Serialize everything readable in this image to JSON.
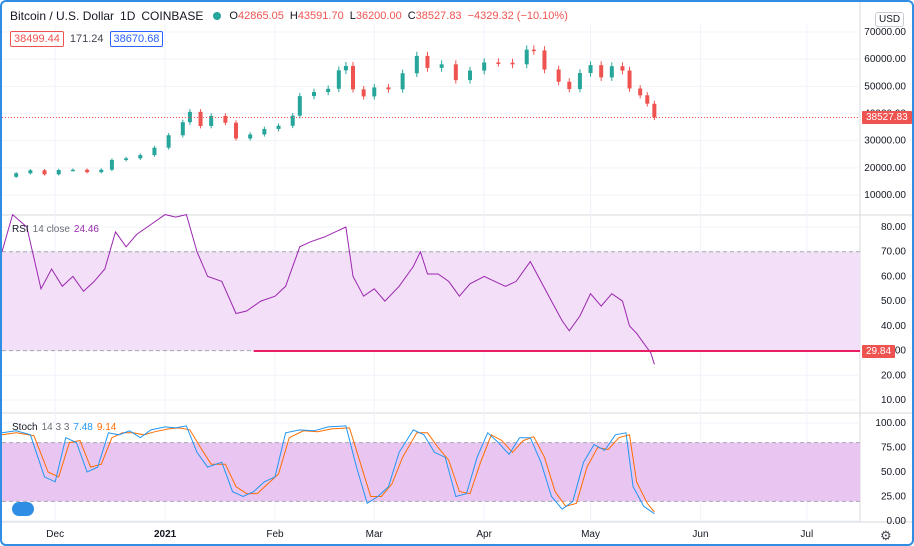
{
  "header": {
    "symbol": "Bitcoin / U.S. Dollar",
    "interval": "1D",
    "exchange": "COINBASE",
    "open_label": "O",
    "open": "42865.05",
    "high_label": "H",
    "high": "43591.70",
    "low_label": "L",
    "low": "36200.00",
    "close_label": "C",
    "close": "38527.83",
    "change": "−4329.32 (−10.10%)"
  },
  "quote": {
    "bid": "38499.44",
    "spread": "171.24",
    "ask": "38670.68"
  },
  "currency": "USD",
  "colors": {
    "up": "#26a69a",
    "down": "#ef5350",
    "rsi": "#9c27b0",
    "rsi_band": "#f3dff8",
    "stoch_band": "#e9c6f2",
    "k": "#2196f3",
    "d": "#ff6d00",
    "border": "#2f8de4"
  },
  "rsi_legend": {
    "name": "RSI",
    "params": "14 close",
    "value": "24.46"
  },
  "stoch_legend": {
    "name": "Stoch",
    "params": "14 3 3",
    "k_value": "7.48",
    "d_value": "9.14"
  },
  "price_tag": "38527.83",
  "rsi_tag": "29.84",
  "icons": {
    "settings": "gear-icon",
    "logo": "cloud-logo-icon"
  },
  "chart_data": [
    {
      "type": "candlestick",
      "title": "Bitcoin / U.S. Dollar 1D COINBASE",
      "ylim": [
        0,
        70000
      ],
      "yticks": [
        "70000.00",
        "60000.00",
        "50000.00",
        "40000.00",
        "30000.00",
        "20000.00",
        "10000.00"
      ],
      "ytick_values": [
        70000,
        60000,
        50000,
        40000,
        30000,
        20000,
        10000
      ],
      "xticks": [
        "Dec",
        "2021",
        "Feb",
        "Mar",
        "Apr",
        "May",
        "Jun",
        "Jul"
      ],
      "xtick_dates": [
        "2020-12-01",
        "2021-01-01",
        "2021-02-01",
        "2021-03-01",
        "2021-04-01",
        "2021-05-01",
        "2021-06-01",
        "2021-07-01"
      ],
      "x_range": [
        "2020-11-16",
        "2021-07-16"
      ],
      "last_price": 38527.83,
      "series_close": [
        [
          "2020-11-16",
          16700
        ],
        [
          "2020-11-20",
          18000
        ],
        [
          "2020-11-24",
          19100
        ],
        [
          "2020-11-28",
          17600
        ],
        [
          "2020-12-02",
          19200
        ],
        [
          "2020-12-06",
          19300
        ],
        [
          "2020-12-10",
          18400
        ],
        [
          "2020-12-14",
          19300
        ],
        [
          "2020-12-17",
          22900
        ],
        [
          "2020-12-21",
          23500
        ],
        [
          "2020-12-25",
          24700
        ],
        [
          "2020-12-29",
          27400
        ],
        [
          "2021-01-02",
          32000
        ],
        [
          "2021-01-06",
          36800
        ],
        [
          "2021-01-08",
          40600
        ],
        [
          "2021-01-11",
          35400
        ],
        [
          "2021-01-14",
          39100
        ],
        [
          "2021-01-18",
          36600
        ],
        [
          "2021-01-21",
          30800
        ],
        [
          "2021-01-25",
          32300
        ],
        [
          "2021-01-29",
          34300
        ],
        [
          "2021-02-02",
          35500
        ],
        [
          "2021-02-06",
          39200
        ],
        [
          "2021-02-08",
          46400
        ],
        [
          "2021-02-12",
          47900
        ],
        [
          "2021-02-16",
          49100
        ],
        [
          "2021-02-19",
          55900
        ],
        [
          "2021-02-21",
          57500
        ],
        [
          "2021-02-23",
          48900
        ],
        [
          "2021-02-26",
          46300
        ],
        [
          "2021-03-01",
          49600
        ],
        [
          "2021-03-05",
          48900
        ],
        [
          "2021-03-09",
          54800
        ],
        [
          "2021-03-13",
          61200
        ],
        [
          "2021-03-16",
          56800
        ],
        [
          "2021-03-20",
          58100
        ],
        [
          "2021-03-24",
          52300
        ],
        [
          "2021-03-28",
          55800
        ],
        [
          "2021-04-01",
          58800
        ],
        [
          "2021-04-05",
          58700
        ],
        [
          "2021-04-09",
          58100
        ],
        [
          "2021-04-13",
          63500
        ],
        [
          "2021-04-15",
          63200
        ],
        [
          "2021-04-18",
          56200
        ],
        [
          "2021-04-22",
          51700
        ],
        [
          "2021-04-25",
          49000
        ],
        [
          "2021-04-28",
          54900
        ],
        [
          "2021-05-01",
          57800
        ],
        [
          "2021-05-04",
          53300
        ],
        [
          "2021-05-07",
          57400
        ],
        [
          "2021-05-10",
          55800
        ],
        [
          "2021-05-12",
          49200
        ],
        [
          "2021-05-15",
          46700
        ],
        [
          "2021-05-17",
          43600
        ],
        [
          "2021-05-19",
          38528
        ]
      ]
    },
    {
      "type": "line",
      "title": "RSI 14 close",
      "ylim": [
        0,
        85
      ],
      "yticks": [
        "80.00",
        "70.00",
        "60.00",
        "50.00",
        "40.00",
        "30.00",
        "20.00",
        "10.00"
      ],
      "ytick_values": [
        80,
        70,
        60,
        50,
        40,
        30,
        20,
        10
      ],
      "band": [
        30,
        70
      ],
      "threshold_line": 29.84,
      "threshold_start": "2021-01-26",
      "last_value": 24.46,
      "series": [
        {
          "values": [
            [
              "2020-11-16",
              70
            ],
            [
              "2020-11-19",
              85
            ],
            [
              "2020-11-23",
              80
            ],
            [
              "2020-11-27",
              55
            ],
            [
              "2020-11-30",
              63
            ],
            [
              "2020-12-03",
              56
            ],
            [
              "2020-12-06",
              60
            ],
            [
              "2020-12-09",
              54
            ],
            [
              "2020-12-12",
              58
            ],
            [
              "2020-12-15",
              63
            ],
            [
              "2020-12-18",
              78
            ],
            [
              "2020-12-21",
              72
            ],
            [
              "2020-12-24",
              77
            ],
            [
              "2020-12-28",
              81
            ],
            [
              "2021-01-01",
              85
            ],
            [
              "2021-01-04",
              84
            ],
            [
              "2021-01-07",
              85
            ],
            [
              "2021-01-10",
              70
            ],
            [
              "2021-01-13",
              60
            ],
            [
              "2021-01-17",
              58
            ],
            [
              "2021-01-21",
              45
            ],
            [
              "2021-01-24",
              46
            ],
            [
              "2021-01-28",
              50
            ],
            [
              "2021-02-01",
              52
            ],
            [
              "2021-02-04",
              56
            ],
            [
              "2021-02-08",
              72
            ],
            [
              "2021-02-11",
              74
            ],
            [
              "2021-02-15",
              76
            ],
            [
              "2021-02-18",
              78
            ],
            [
              "2021-02-21",
              80
            ],
            [
              "2021-02-23",
              60
            ],
            [
              "2021-02-26",
              52
            ],
            [
              "2021-03-01",
              55
            ],
            [
              "2021-03-04",
              50
            ],
            [
              "2021-03-08",
              56
            ],
            [
              "2021-03-12",
              64
            ],
            [
              "2021-03-14",
              70
            ],
            [
              "2021-03-16",
              61
            ],
            [
              "2021-03-19",
              61
            ],
            [
              "2021-03-22",
              58
            ],
            [
              "2021-03-25",
              52
            ],
            [
              "2021-03-28",
              57
            ],
            [
              "2021-04-01",
              60
            ],
            [
              "2021-04-04",
              58
            ],
            [
              "2021-04-07",
              56
            ],
            [
              "2021-04-10",
              58
            ],
            [
              "2021-04-14",
              66
            ],
            [
              "2021-04-17",
              58
            ],
            [
              "2021-04-20",
              50
            ],
            [
              "2021-04-23",
              42
            ],
            [
              "2021-04-25",
              38
            ],
            [
              "2021-04-28",
              44
            ],
            [
              "2021-05-01",
              53
            ],
            [
              "2021-05-04",
              48
            ],
            [
              "2021-05-07",
              53
            ],
            [
              "2021-05-10",
              50
            ],
            [
              "2021-05-12",
              40
            ],
            [
              "2021-05-14",
              37
            ],
            [
              "2021-05-16",
              33
            ],
            [
              "2021-05-18",
              29
            ],
            [
              "2021-05-19",
              24.46
            ]
          ]
        }
      ]
    },
    {
      "type": "line",
      "title": "Stoch 14 3 3",
      "ylim": [
        0,
        100
      ],
      "yticks": [
        "100.00",
        "75.00",
        "50.00",
        "25.00",
        "0.00"
      ],
      "ytick_values": [
        100,
        75,
        50,
        25,
        0
      ],
      "band": [
        20,
        80
      ],
      "series": [
        {
          "name": "K",
          "values": [
            [
              "2020-11-16",
              90
            ],
            [
              "2020-11-20",
              92
            ],
            [
              "2020-11-24",
              88
            ],
            [
              "2020-11-28",
              45
            ],
            [
              "2020-12-01",
              40
            ],
            [
              "2020-12-04",
              85
            ],
            [
              "2020-12-07",
              80
            ],
            [
              "2020-12-10",
              50
            ],
            [
              "2020-12-13",
              55
            ],
            [
              "2020-12-16",
              90
            ],
            [
              "2020-12-19",
              88
            ],
            [
              "2020-12-22",
              92
            ],
            [
              "2020-12-25",
              85
            ],
            [
              "2020-12-28",
              93
            ],
            [
              "2021-01-01",
              96
            ],
            [
              "2021-01-04",
              95
            ],
            [
              "2021-01-07",
              97
            ],
            [
              "2021-01-10",
              70
            ],
            [
              "2021-01-13",
              55
            ],
            [
              "2021-01-17",
              60
            ],
            [
              "2021-01-20",
              30
            ],
            [
              "2021-01-23",
              25
            ],
            [
              "2021-01-26",
              30
            ],
            [
              "2021-01-29",
              40
            ],
            [
              "2021-02-01",
              45
            ],
            [
              "2021-02-04",
              90
            ],
            [
              "2021-02-08",
              93
            ],
            [
              "2021-02-12",
              92
            ],
            [
              "2021-02-16",
              96
            ],
            [
              "2021-02-21",
              97
            ],
            [
              "2021-02-24",
              55
            ],
            [
              "2021-02-27",
              18
            ],
            [
              "2021-03-02",
              25
            ],
            [
              "2021-03-05",
              35
            ],
            [
              "2021-03-08",
              70
            ],
            [
              "2021-03-12",
              93
            ],
            [
              "2021-03-15",
              88
            ],
            [
              "2021-03-18",
              70
            ],
            [
              "2021-03-21",
              65
            ],
            [
              "2021-03-24",
              25
            ],
            [
              "2021-03-27",
              28
            ],
            [
              "2021-03-30",
              65
            ],
            [
              "2021-04-02",
              90
            ],
            [
              "2021-04-05",
              80
            ],
            [
              "2021-04-08",
              68
            ],
            [
              "2021-04-11",
              85
            ],
            [
              "2021-04-14",
              85
            ],
            [
              "2021-04-17",
              60
            ],
            [
              "2021-04-20",
              25
            ],
            [
              "2021-04-23",
              12
            ],
            [
              "2021-04-26",
              20
            ],
            [
              "2021-04-29",
              60
            ],
            [
              "2021-05-02",
              78
            ],
            [
              "2021-05-05",
              72
            ],
            [
              "2021-05-08",
              88
            ],
            [
              "2021-05-11",
              90
            ],
            [
              "2021-05-13",
              35
            ],
            [
              "2021-05-16",
              15
            ],
            [
              "2021-05-19",
              7.48
            ]
          ]
        },
        {
          "name": "D",
          "values": [
            [
              "2020-11-16",
              88
            ],
            [
              "2020-11-20",
              90
            ],
            [
              "2020-11-25",
              87
            ],
            [
              "2020-11-29",
              50
            ],
            [
              "2020-12-02",
              45
            ],
            [
              "2020-12-05",
              80
            ],
            [
              "2020-12-08",
              82
            ],
            [
              "2020-12-11",
              55
            ],
            [
              "2020-12-14",
              58
            ],
            [
              "2020-12-17",
              85
            ],
            [
              "2020-12-20",
              90
            ],
            [
              "2020-12-23",
              90
            ],
            [
              "2020-12-26",
              88
            ],
            [
              "2020-12-29",
              91
            ],
            [
              "2021-01-02",
              94
            ],
            [
              "2021-01-05",
              95
            ],
            [
              "2021-01-08",
              93
            ],
            [
              "2021-01-11",
              75
            ],
            [
              "2021-01-14",
              58
            ],
            [
              "2021-01-18",
              58
            ],
            [
              "2021-01-21",
              35
            ],
            [
              "2021-01-24",
              28
            ],
            [
              "2021-01-27",
              28
            ],
            [
              "2021-01-30",
              38
            ],
            [
              "2021-02-02",
              48
            ],
            [
              "2021-02-05",
              85
            ],
            [
              "2021-02-09",
              92
            ],
            [
              "2021-02-13",
              91
            ],
            [
              "2021-02-17",
              94
            ],
            [
              "2021-02-22",
              95
            ],
            [
              "2021-02-25",
              60
            ],
            [
              "2021-02-28",
              25
            ],
            [
              "2021-03-03",
              25
            ],
            [
              "2021-03-06",
              38
            ],
            [
              "2021-03-09",
              65
            ],
            [
              "2021-03-13",
              90
            ],
            [
              "2021-03-16",
              90
            ],
            [
              "2021-03-19",
              75
            ],
            [
              "2021-03-22",
              62
            ],
            [
              "2021-03-25",
              30
            ],
            [
              "2021-03-28",
              28
            ],
            [
              "2021-03-31",
              60
            ],
            [
              "2021-04-03",
              88
            ],
            [
              "2021-04-06",
              82
            ],
            [
              "2021-04-09",
              70
            ],
            [
              "2021-04-12",
              82
            ],
            [
              "2021-04-15",
              86
            ],
            [
              "2021-04-18",
              65
            ],
            [
              "2021-04-21",
              30
            ],
            [
              "2021-04-24",
              15
            ],
            [
              "2021-04-27",
              18
            ],
            [
              "2021-04-30",
              55
            ],
            [
              "2021-05-03",
              75
            ],
            [
              "2021-05-06",
              73
            ],
            [
              "2021-05-09",
              85
            ],
            [
              "2021-05-12",
              88
            ],
            [
              "2021-05-14",
              40
            ],
            [
              "2021-05-17",
              18
            ],
            [
              "2021-05-19",
              9.14
            ]
          ]
        }
      ]
    }
  ]
}
